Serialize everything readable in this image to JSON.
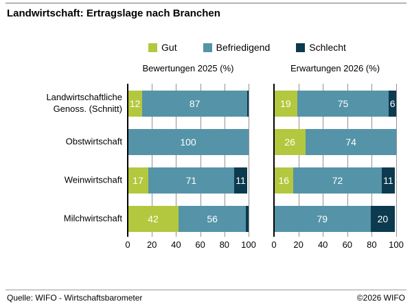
{
  "title": "Landwirtschaft: Ertragslage nach Branchen",
  "legend": [
    {
      "label": "Gut",
      "color": "#b3c83e"
    },
    {
      "label": "Befriedigend",
      "color": "#5593a8"
    },
    {
      "label": "Schlecht",
      "color": "#0c3a4e"
    }
  ],
  "footer": {
    "source": "Quelle: WIFO - Wirtschaftsbarometer",
    "copyright": "©2026 WIFO"
  },
  "chart_data": {
    "type": "bar",
    "orientation": "horizontal",
    "stacked": true,
    "grid": true,
    "legend_position": "top",
    "xlim": [
      0,
      100
    ],
    "xticks": [
      0,
      20,
      40,
      60,
      80,
      100
    ],
    "categories": [
      "Landwirtschaftliche Genoss. (Schnitt)",
      "Obstwirtschaft",
      "Weinwirtschaft",
      "Milchwirtschaft"
    ],
    "series_names": [
      "Gut",
      "Befriedigend",
      "Schlecht"
    ],
    "colors": {
      "Gut": "#b3c83e",
      "Befriedigend": "#5593a8",
      "Schlecht": "#0c3a4e"
    },
    "panels": [
      {
        "title": "Bewertungen 2025 (%)",
        "rows": [
          {
            "category": "Landwirtschaftliche Genoss. (Schnitt)",
            "segments": [
              {
                "series": "Gut",
                "value": 12,
                "show_label": true
              },
              {
                "series": "Befriedigend",
                "value": 87,
                "show_label": true
              },
              {
                "series": "Schlecht",
                "value": 1,
                "show_label": false
              }
            ]
          },
          {
            "category": "Obstwirtschaft",
            "segments": [
              {
                "series": "Befriedigend",
                "value": 100,
                "show_label": true
              }
            ]
          },
          {
            "category": "Weinwirtschaft",
            "segments": [
              {
                "series": "Gut",
                "value": 17,
                "show_label": true
              },
              {
                "series": "Befriedigend",
                "value": 71,
                "show_label": true
              },
              {
                "series": "Schlecht",
                "value": 11,
                "show_label": true
              }
            ]
          },
          {
            "category": "Milchwirtschaft",
            "segments": [
              {
                "series": "Gut",
                "value": 42,
                "show_label": true
              },
              {
                "series": "Befriedigend",
                "value": 56,
                "show_label": true
              },
              {
                "series": "Schlecht",
                "value": 2,
                "show_label": false
              }
            ]
          }
        ]
      },
      {
        "title": "Erwartungen 2026 (%)",
        "rows": [
          {
            "category": "Landwirtschaftliche Genoss. (Schnitt)",
            "segments": [
              {
                "series": "Gut",
                "value": 19,
                "show_label": true
              },
              {
                "series": "Befriedigend",
                "value": 75,
                "show_label": true
              },
              {
                "series": "Schlecht",
                "value": 6,
                "show_label": true
              }
            ]
          },
          {
            "category": "Obstwirtschaft",
            "segments": [
              {
                "series": "Gut",
                "value": 26,
                "show_label": true
              },
              {
                "series": "Befriedigend",
                "value": 74,
                "show_label": true
              }
            ]
          },
          {
            "category": "Weinwirtschaft",
            "segments": [
              {
                "series": "Gut",
                "value": 16,
                "show_label": true
              },
              {
                "series": "Befriedigend",
                "value": 72,
                "show_label": true
              },
              {
                "series": "Schlecht",
                "value": 11,
                "show_label": true
              }
            ]
          },
          {
            "category": "Milchwirtschaft",
            "segments": [
              {
                "series": "Befriedigend",
                "value": 79,
                "show_label": true
              },
              {
                "series": "Schlecht",
                "value": 20,
                "show_label": true
              }
            ]
          }
        ]
      }
    ]
  }
}
